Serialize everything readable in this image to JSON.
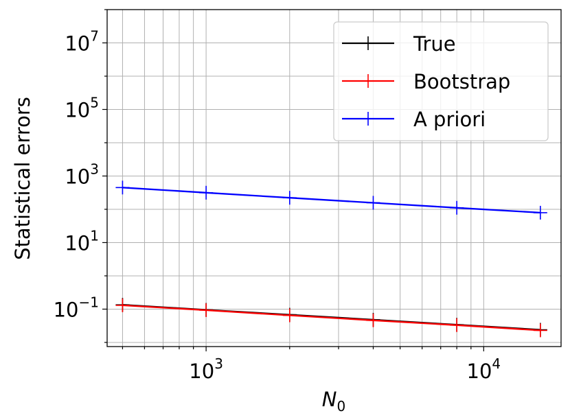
{
  "chart_data": {
    "type": "line",
    "xscale": "log",
    "yscale": "log",
    "xlabel_base": "N",
    "xlabel_sub": "0",
    "ylabel": "Statistical errors",
    "xlim": [
      440,
      19000
    ],
    "ylim": [
      0.0075,
      100000000
    ],
    "grid": true,
    "legend_position": "top-right",
    "x_ticks": [
      {
        "base": "10",
        "exp": "3",
        "value": 1000
      },
      {
        "base": "10",
        "exp": "4",
        "value": 10000
      }
    ],
    "y_ticks": [
      {
        "base": "10",
        "exp": "7",
        "value": 10000000
      },
      {
        "base": "10",
        "exp": "5",
        "value": 100000
      },
      {
        "base": "10",
        "exp": "3",
        "value": 1000
      },
      {
        "base": "10",
        "exp": "1",
        "value": 10
      },
      {
        "base": "10",
        "exp": "−1",
        "value": 0.1
      }
    ],
    "x": [
      500,
      1000,
      2000,
      4000,
      8000,
      16000
    ],
    "series": [
      {
        "name": "True",
        "color": "#000000",
        "values": [
          0.135,
          0.095,
          0.068,
          0.048,
          0.034,
          0.024
        ]
      },
      {
        "name": "Bootstrap",
        "color": "#ff0000",
        "values": [
          0.13,
          0.093,
          0.065,
          0.046,
          0.033,
          0.023
        ]
      },
      {
        "name": "A priori",
        "color": "#0000ff",
        "values": [
          450,
          315,
          222,
          157,
          111,
          79
        ]
      }
    ]
  }
}
